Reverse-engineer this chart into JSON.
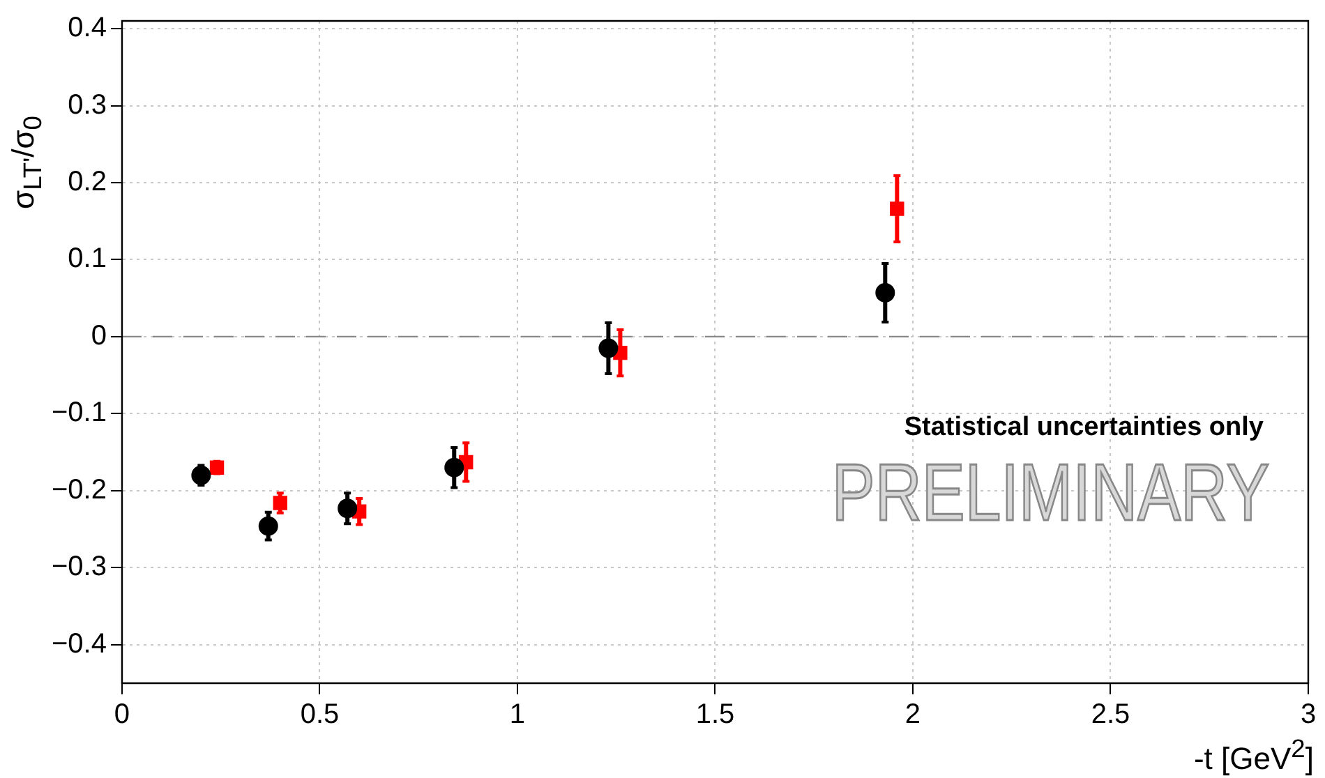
{
  "chart_data": {
    "type": "scatter",
    "xlabel": "-t [GeV$^{2}$]",
    "ylabel": "σ$_{LT'}$/σ$_{0}$",
    "xlim": [
      0,
      3
    ],
    "xticks": [
      0,
      0.5,
      1,
      1.5,
      2,
      2.5,
      3
    ],
    "ylim": [
      -0.45,
      0.41
    ],
    "yticks": [
      {
        "value": -0.4,
        "label": "−0.4"
      },
      {
        "value": -0.3,
        "label": "−0.3"
      },
      {
        "value": -0.2,
        "label": "−0.2"
      },
      {
        "value": -0.1,
        "label": "−0.1"
      },
      0,
      0.1,
      0.2,
      0.3,
      0.4
    ],
    "grid": true,
    "legend": false,
    "series": [
      {
        "color": "#000000",
        "marker": "circle",
        "x": [
          0.2,
          0.37,
          0.57,
          0.84,
          1.23,
          1.93
        ],
        "values": [
          -0.18,
          -0.246,
          -0.223,
          -0.17,
          -0.015,
          0.057
        ],
        "errors": [
          0.013,
          0.018,
          0.02,
          0.026,
          0.033,
          0.038
        ]
      },
      {
        "color": "#ff0000",
        "marker": "square",
        "x": [
          0.24,
          0.4,
          0.6,
          0.87,
          1.26,
          1.96
        ],
        "values": [
          -0.17,
          -0.216,
          -0.227,
          -0.163,
          -0.021,
          0.166
        ],
        "errors": [
          0.008,
          0.013,
          0.017,
          0.025,
          0.03,
          0.043
        ]
      }
    ],
    "ref_lines": [
      {
        "axis": "y",
        "value": 0,
        "color": "#888888",
        "line_style": "dashed"
      }
    ],
    "annotations": [
      "Statistical uncertainties only",
      "PRELIMINARY"
    ]
  }
}
